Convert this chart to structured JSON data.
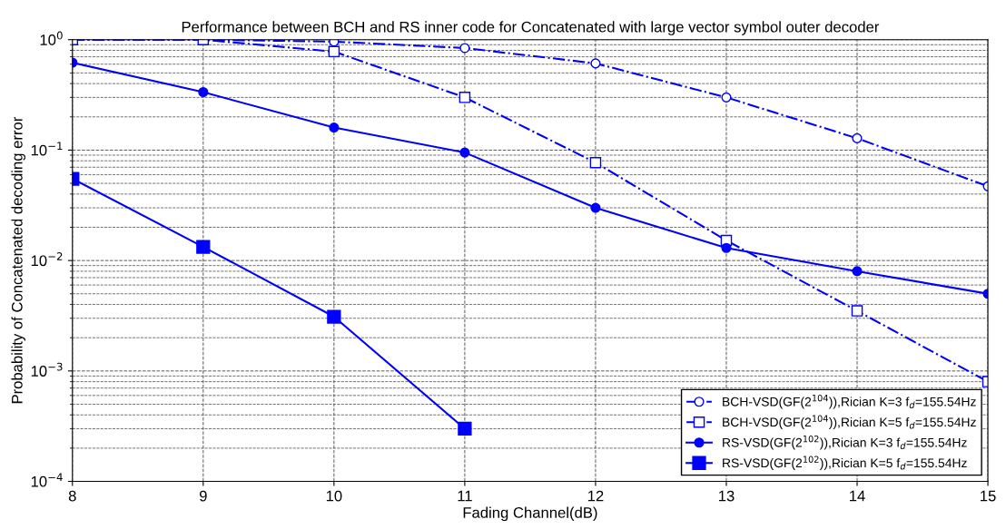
{
  "chart_data": {
    "type": "line",
    "title": "Performance between BCH and RS inner code for Concatenated with large vector symbol outer decoder",
    "xlabel": "Fading Channel(dB)",
    "ylabel": "Probability of Concatenated decoding error",
    "x": [
      8,
      9,
      10,
      11,
      12,
      13,
      14,
      15
    ],
    "series": [
      {
        "name": "BCH-VSD(GF(2$^{104}$)),Rician K=3 f$_{d}$=155.54Hz",
        "color": "#0000ff",
        "marker": "circle",
        "line_style": "dashdot",
        "values": [
          1.0,
          1.0,
          0.96,
          0.84,
          0.61,
          0.3,
          0.128,
          0.047
        ]
      },
      {
        "name": "BCH-VSD(GF(2$^{104}$)),Rician K=5 f$_{d}$=155.54Hz",
        "color": "#0000ff",
        "marker": "square",
        "line_style": "dashdot",
        "values": [
          1.0,
          1.0,
          0.78,
          0.3,
          0.077,
          0.0152,
          0.0035,
          0.0008
        ]
      },
      {
        "name": "RS-VSD(GF(2$^{102}$)),Rician K=3 f$_{d}$=155.54Hz",
        "color": "#0000ff",
        "marker": "circle",
        "line_style": "solid",
        "values": [
          0.62,
          0.335,
          0.16,
          0.095,
          0.03,
          0.013,
          0.008,
          0.005
        ]
      },
      {
        "name": "RS-VSD(GF(2$^{102}$)),Rician K=5 f$_{d}$=155.54Hz",
        "color": "#0000ff",
        "marker": "square",
        "line_style": "solid",
        "values": [
          0.055,
          0.0133,
          0.0031,
          0.0003,
          null,
          null,
          null,
          null
        ]
      }
    ],
    "log": "y",
    "xlim": [
      8,
      15
    ],
    "xticks": [
      8,
      9,
      10,
      11,
      12,
      13,
      14,
      15
    ],
    "ylim": [
      0.0001,
      1
    ],
    "yticks": [
      {
        "value": 0.0001,
        "label": "10$^{−4}$"
      },
      {
        "value": 0.001,
        "label": "10$^{−3}$"
      },
      {
        "value": 0.01,
        "label": "10$^{−2}$"
      },
      {
        "value": 0.1,
        "label": "10$^{−1}$"
      },
      {
        "value": 1,
        "label": "10$^{0}$"
      }
    ],
    "grid": true,
    "legend": "bottom right"
  }
}
